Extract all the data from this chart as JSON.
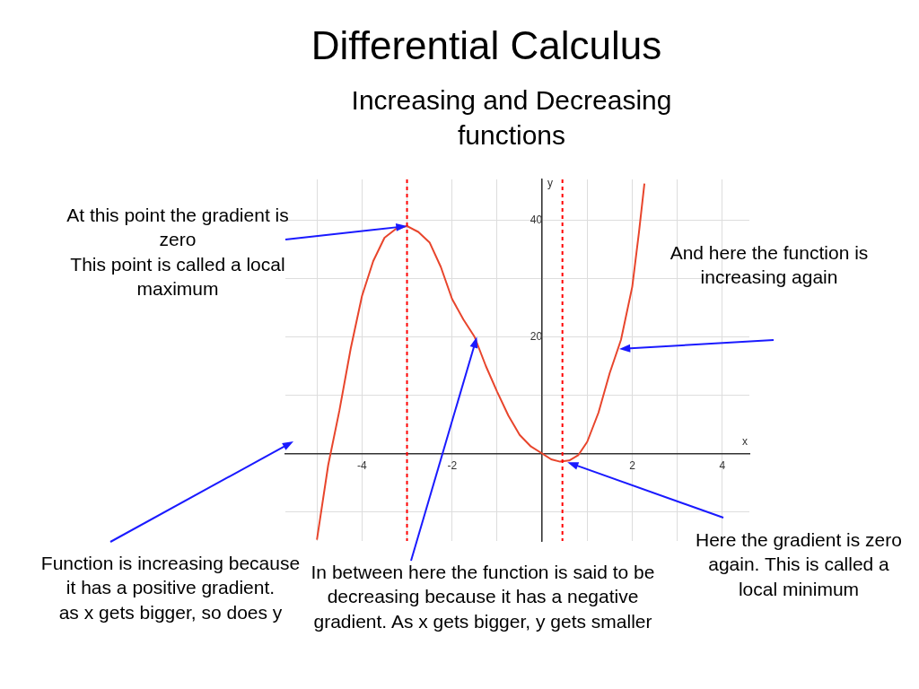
{
  "chart_data": {
    "type": "line",
    "title": "Differential Calculus",
    "subtitle": "Increasing and Decreasing functions",
    "xlabel": "x",
    "ylabel": "y",
    "series": [
      {
        "color": "#e8452c",
        "x": [
          -5,
          -4.75,
          -4.5,
          -4.25,
          -4,
          -3.75,
          -3.5,
          -3.25,
          -3,
          -2.75,
          -2.5,
          -2.25,
          -2,
          -1.75,
          -1.5,
          -1.25,
          -1,
          -0.75,
          -0.5,
          -0.25,
          0,
          0.2,
          0.4,
          0.6,
          0.8,
          1,
          1.25,
          1.5,
          1.75,
          2,
          2.15,
          2.27
        ],
        "values": [
          -14.8,
          -2,
          7.4,
          18,
          27,
          33,
          37,
          38.5,
          39,
          38,
          36.2,
          32,
          26.5,
          23,
          20,
          15,
          10.6,
          6.5,
          3.2,
          1.2,
          0,
          -1,
          -1.4,
          -1.2,
          -0.3,
          2,
          7,
          13.8,
          19.5,
          28.6,
          38,
          46.3
        ]
      }
    ],
    "xlim": [
      -5.7,
      4.6
    ],
    "ylim": [
      -15,
      47
    ],
    "xticks": [
      {
        "value": -5,
        "label": null
      },
      -4,
      {
        "value": -3,
        "label": null
      },
      -2,
      {
        "value": -1,
        "label": null
      },
      {
        "value": 0,
        "label": null
      },
      {
        "value": 1,
        "label": null
      },
      2,
      {
        "value": 3,
        "label": null
      },
      4
    ],
    "yticks": [
      {
        "value": -10,
        "label": null
      },
      {
        "value": 0,
        "label": null
      },
      {
        "value": 10,
        "label": null
      },
      20,
      {
        "value": 30,
        "label": null
      },
      40
    ],
    "grid": true,
    "marker": "none",
    "line_style": "solid",
    "legend": false,
    "ref_lines": [
      {
        "axis": "x",
        "value": -3,
        "color": "#ff0000",
        "line_style": "dotted"
      },
      {
        "axis": "x",
        "value": 0.45,
        "color": "#ff0000",
        "line_style": "dotted"
      }
    ],
    "annotations": [
      {
        "text": "At this point the gradient is zero\nThis point is called a local maximum",
        "x": -3,
        "y": 39
      },
      "And here the function is increasing again",
      "Function is increasing because it has a positive gradient.\nas x gets bigger, so does y",
      {
        "text": "In between here the function is said to be decreasing because it has a negative gradient. As x gets bigger, y gets smaller",
        "x": -1.45,
        "y": 20
      },
      {
        "text": "Here the gradient is zero again. This is called a local minimum",
        "x": 0.56,
        "y": -1.5
      }
    ]
  }
}
